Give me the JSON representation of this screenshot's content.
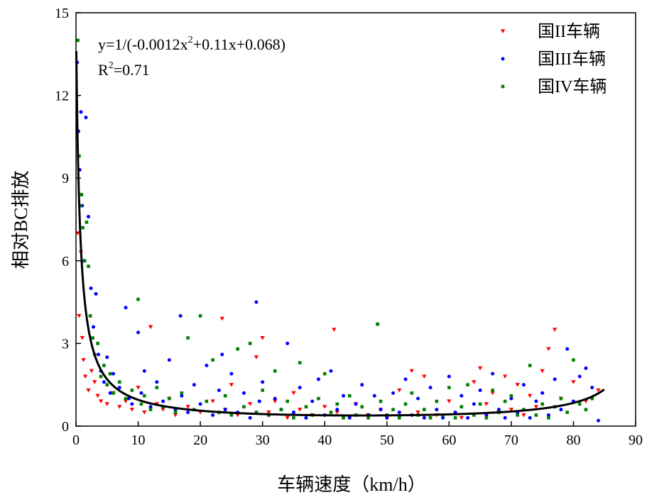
{
  "chart_data": {
    "type": "scatter",
    "title": "",
    "xlabel": "车辆速度（km/h）",
    "ylabel": "相对BC排放",
    "xlim": [
      0,
      90
    ],
    "ylim": [
      0,
      15
    ],
    "xticks": [
      0,
      10,
      20,
      30,
      40,
      50,
      60,
      70,
      80,
      90
    ],
    "yticks": [
      0,
      3,
      6,
      9,
      12,
      15
    ],
    "grid": false,
    "legend_position": "top-right",
    "annotation": {
      "equation_prefix": "y=1/(-0.0012x",
      "equation_sup": "2",
      "equation_suffix": "+0.11x+0.068)",
      "r2_prefix": "R",
      "r2_sup": "2",
      "r2_suffix": "=0.71"
    },
    "fit": {
      "formula": "y = 1/(-0.0012x^2 + 0.11x + 0.068)",
      "coefficients": {
        "a": -0.0012,
        "b": 0.11,
        "c": 0.068
      },
      "x_range": [
        0,
        85
      ],
      "color": "#000000"
    },
    "series": [
      {
        "name": "国II车辆",
        "marker": "triangle-down",
        "color": "#ff0000",
        "points": [
          [
            0.3,
            7.0
          ],
          [
            0.5,
            4.0
          ],
          [
            0.8,
            6.3
          ],
          [
            1.0,
            3.2
          ],
          [
            1.2,
            2.4
          ],
          [
            1.5,
            1.8
          ],
          [
            2.0,
            1.3
          ],
          [
            2.5,
            2.0
          ],
          [
            3.0,
            1.6
          ],
          [
            3.5,
            1.1
          ],
          [
            4.0,
            0.9
          ],
          [
            5.0,
            0.8
          ],
          [
            6.0,
            1.2
          ],
          [
            7.0,
            0.7
          ],
          [
            8.0,
            0.9
          ],
          [
            9.0,
            0.6
          ],
          [
            10.0,
            1.4
          ],
          [
            11.0,
            0.5
          ],
          [
            12.0,
            3.6
          ],
          [
            13.0,
            0.8
          ],
          [
            14.0,
            0.6
          ],
          [
            15.0,
            1.0
          ],
          [
            16.0,
            0.4
          ],
          [
            18.0,
            0.7
          ],
          [
            20.0,
            0.5
          ],
          [
            22.0,
            0.9
          ],
          [
            23.5,
            3.9
          ],
          [
            24.0,
            0.6
          ],
          [
            25.0,
            1.5
          ],
          [
            26.0,
            0.4
          ],
          [
            28.0,
            0.8
          ],
          [
            29.0,
            2.5
          ],
          [
            30.0,
            3.2
          ],
          [
            31.0,
            0.5
          ],
          [
            32.0,
            0.9
          ],
          [
            34.0,
            0.3
          ],
          [
            35.0,
            1.2
          ],
          [
            36.0,
            0.6
          ],
          [
            38.0,
            0.4
          ],
          [
            40.0,
            0.7
          ],
          [
            41.5,
            3.5
          ],
          [
            42.0,
            0.5
          ],
          [
            44.0,
            0.3
          ],
          [
            45.0,
            0.8
          ],
          [
            47.0,
            0.4
          ],
          [
            49.0,
            0.6
          ],
          [
            50.0,
            0.3
          ],
          [
            52.0,
            1.3
          ],
          [
            54.0,
            2.0
          ],
          [
            55.0,
            0.5
          ],
          [
            56.0,
            1.8
          ],
          [
            58.0,
            0.4
          ],
          [
            60.0,
            0.9
          ],
          [
            62.0,
            0.3
          ],
          [
            64.0,
            1.6
          ],
          [
            65.0,
            2.1
          ],
          [
            66.0,
            0.8
          ],
          [
            67.0,
            1.2
          ],
          [
            68.0,
            0.5
          ],
          [
            69.0,
            1.8
          ],
          [
            70.0,
            0.6
          ],
          [
            71.0,
            1.5
          ],
          [
            72.0,
            0.4
          ],
          [
            73.0,
            1.1
          ],
          [
            74.0,
            0.7
          ],
          [
            75.0,
            2.0
          ],
          [
            76.0,
            2.8
          ],
          [
            77.0,
            3.5
          ],
          [
            78.0,
            1.0
          ],
          [
            80.0,
            1.6
          ],
          [
            82.0,
            0.9
          ],
          [
            84.0,
            1.3
          ]
        ]
      },
      {
        "name": "国III车辆",
        "marker": "circle",
        "color": "#0000ff",
        "points": [
          [
            0.2,
            13.2
          ],
          [
            0.4,
            10.7
          ],
          [
            0.6,
            9.3
          ],
          [
            0.8,
            11.4
          ],
          [
            1.0,
            8.0
          ],
          [
            1.3,
            6.0
          ],
          [
            1.6,
            11.2
          ],
          [
            2.0,
            7.6
          ],
          [
            2.4,
            5.0
          ],
          [
            2.8,
            3.6
          ],
          [
            3.2,
            4.8
          ],
          [
            3.6,
            2.6
          ],
          [
            4.0,
            2.0
          ],
          [
            4.5,
            1.6
          ],
          [
            5.0,
            2.5
          ],
          [
            5.5,
            1.2
          ],
          [
            6.0,
            1.9
          ],
          [
            7.0,
            1.4
          ],
          [
            8.0,
            4.3
          ],
          [
            8.5,
            1.0
          ],
          [
            9.0,
            0.8
          ],
          [
            10.0,
            3.4
          ],
          [
            10.5,
            1.2
          ],
          [
            11.0,
            2.0
          ],
          [
            12.0,
            0.7
          ],
          [
            13.0,
            1.6
          ],
          [
            14.0,
            0.9
          ],
          [
            15.0,
            2.4
          ],
          [
            16.0,
            0.6
          ],
          [
            16.8,
            4.0
          ],
          [
            17.0,
            1.1
          ],
          [
            18.0,
            0.5
          ],
          [
            19.0,
            1.5
          ],
          [
            20.0,
            0.8
          ],
          [
            21.0,
            2.2
          ],
          [
            22.0,
            0.4
          ],
          [
            23.0,
            1.3
          ],
          [
            23.5,
            2.6
          ],
          [
            24.0,
            0.6
          ],
          [
            25.0,
            1.9
          ],
          [
            26.0,
            0.5
          ],
          [
            27.0,
            1.2
          ],
          [
            28.0,
            0.3
          ],
          [
            29.0,
            4.5
          ],
          [
            29.5,
            0.9
          ],
          [
            30.0,
            1.6
          ],
          [
            31.0,
            0.4
          ],
          [
            32.0,
            1.0
          ],
          [
            33.0,
            0.6
          ],
          [
            34.0,
            3.0
          ],
          [
            35.0,
            0.5
          ],
          [
            36.0,
            1.4
          ],
          [
            37.0,
            0.3
          ],
          [
            38.0,
            0.9
          ],
          [
            39.0,
            1.7
          ],
          [
            40.0,
            0.4
          ],
          [
            41.0,
            2.0
          ],
          [
            42.0,
            0.6
          ],
          [
            43.0,
            1.1
          ],
          [
            44.0,
            0.3
          ],
          [
            45.0,
            0.8
          ],
          [
            46.0,
            1.5
          ],
          [
            47.0,
            0.4
          ],
          [
            48.0,
            1.1
          ],
          [
            48.5,
            3.7
          ],
          [
            49.0,
            0.6
          ],
          [
            50.0,
            0.3
          ],
          [
            51.0,
            1.2
          ],
          [
            52.0,
            0.5
          ],
          [
            53.0,
            1.7
          ],
          [
            54.0,
            0.4
          ],
          [
            55.0,
            1.0
          ],
          [
            56.0,
            0.3
          ],
          [
            57.0,
            1.4
          ],
          [
            58.0,
            0.6
          ],
          [
            59.0,
            0.3
          ],
          [
            60.0,
            1.8
          ],
          [
            61.0,
            0.5
          ],
          [
            62.0,
            1.1
          ],
          [
            63.0,
            0.3
          ],
          [
            64.0,
            0.8
          ],
          [
            65.0,
            1.3
          ],
          [
            66.0,
            0.4
          ],
          [
            67.0,
            1.9
          ],
          [
            68.0,
            0.6
          ],
          [
            69.0,
            0.3
          ],
          [
            70.0,
            1.0
          ],
          [
            71.0,
            0.5
          ],
          [
            72.0,
            1.5
          ],
          [
            73.0,
            0.3
          ],
          [
            74.0,
            0.9
          ],
          [
            75.0,
            1.2
          ],
          [
            76.0,
            0.4
          ],
          [
            77.0,
            1.7
          ],
          [
            78.0,
            0.6
          ],
          [
            79.0,
            2.8
          ],
          [
            80.0,
            0.9
          ],
          [
            81.0,
            1.8
          ],
          [
            82.0,
            2.1
          ],
          [
            83.0,
            1.4
          ],
          [
            84.0,
            0.2
          ]
        ]
      },
      {
        "name": "国IV车辆",
        "marker": "square",
        "color": "#008000",
        "points": [
          [
            0.3,
            14.0
          ],
          [
            0.5,
            9.8
          ],
          [
            0.7,
            8.0
          ],
          [
            0.9,
            8.4
          ],
          [
            1.1,
            7.2
          ],
          [
            1.4,
            6.0
          ],
          [
            1.7,
            7.4
          ],
          [
            2.0,
            5.8
          ],
          [
            2.3,
            4.0
          ],
          [
            2.7,
            3.2
          ],
          [
            3.0,
            2.6
          ],
          [
            3.5,
            3.0
          ],
          [
            4.0,
            1.8
          ],
          [
            4.5,
            2.2
          ],
          [
            5.0,
            1.5
          ],
          [
            5.5,
            1.9
          ],
          [
            6.0,
            1.2
          ],
          [
            7.0,
            1.6
          ],
          [
            8.0,
            1.0
          ],
          [
            9.0,
            1.3
          ],
          [
            10.0,
            4.6
          ],
          [
            10.5,
            0.8
          ],
          [
            11.0,
            1.1
          ],
          [
            12.0,
            0.6
          ],
          [
            13.0,
            1.4
          ],
          [
            14.0,
            0.7
          ],
          [
            15.0,
            1.0
          ],
          [
            16.0,
            0.5
          ],
          [
            17.0,
            1.2
          ],
          [
            18.0,
            3.2
          ],
          [
            19.0,
            0.6
          ],
          [
            20.0,
            4.0
          ],
          [
            21.0,
            0.9
          ],
          [
            22.0,
            2.4
          ],
          [
            23.0,
            0.5
          ],
          [
            24.0,
            1.1
          ],
          [
            25.0,
            0.4
          ],
          [
            26.0,
            2.8
          ],
          [
            27.0,
            0.7
          ],
          [
            28.0,
            3.0
          ],
          [
            29.0,
            0.5
          ],
          [
            30.0,
            1.3
          ],
          [
            31.0,
            0.4
          ],
          [
            32.0,
            2.0
          ],
          [
            33.0,
            0.6
          ],
          [
            34.0,
            0.9
          ],
          [
            35.0,
            0.3
          ],
          [
            36.0,
            2.3
          ],
          [
            37.0,
            0.7
          ],
          [
            38.0,
            0.4
          ],
          [
            39.0,
            1.0
          ],
          [
            40.0,
            1.9
          ],
          [
            41.0,
            0.5
          ],
          [
            42.0,
            0.8
          ],
          [
            43.0,
            0.3
          ],
          [
            44.0,
            1.1
          ],
          [
            45.0,
            0.4
          ],
          [
            46.0,
            0.7
          ],
          [
            47.0,
            0.3
          ],
          [
            48.5,
            3.7
          ],
          [
            49.0,
            0.9
          ],
          [
            50.0,
            0.4
          ],
          [
            51.0,
            0.6
          ],
          [
            52.0,
            0.3
          ],
          [
            53.0,
            0.8
          ],
          [
            54.0,
            1.2
          ],
          [
            55.0,
            0.4
          ],
          [
            56.0,
            0.6
          ],
          [
            57.0,
            0.3
          ],
          [
            58.0,
            0.9
          ],
          [
            59.0,
            0.4
          ],
          [
            60.0,
            1.4
          ],
          [
            61.0,
            0.3
          ],
          [
            62.0,
            0.7
          ],
          [
            63.0,
            1.5
          ],
          [
            64.0,
            0.4
          ],
          [
            65.0,
            0.8
          ],
          [
            66.0,
            0.3
          ],
          [
            67.0,
            1.3
          ],
          [
            68.0,
            0.5
          ],
          [
            69.0,
            0.9
          ],
          [
            70.0,
            1.1
          ],
          [
            71.0,
            0.4
          ],
          [
            72.0,
            0.6
          ],
          [
            73.0,
            2.2
          ],
          [
            74.0,
            0.4
          ],
          [
            75.0,
            0.8
          ],
          [
            76.0,
            0.3
          ],
          [
            77.0,
            0.7
          ],
          [
            78.0,
            1.0
          ],
          [
            79.0,
            0.5
          ],
          [
            80.0,
            2.4
          ],
          [
            81.0,
            0.8
          ],
          [
            82.0,
            0.6
          ],
          [
            83.0,
            1.0
          ]
        ]
      }
    ]
  }
}
